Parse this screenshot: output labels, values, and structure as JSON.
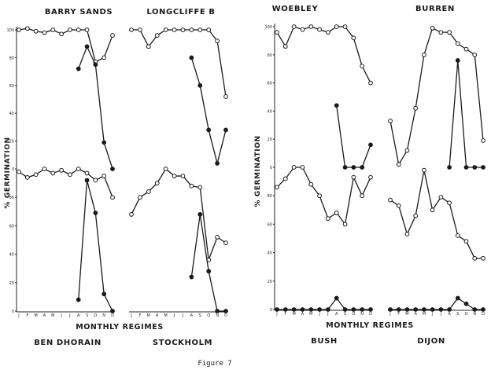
{
  "figure_label": "Figure 7",
  "groups": [
    {
      "ylabel": "% GERMINATION",
      "xlabel": "MONTHLY REGIMES"
    },
    {
      "ylabel": "% GERMINATION",
      "xlabel": "MONTHLY REGIMES"
    }
  ],
  "chart_data": [
    {
      "type": "line",
      "title": "BARRY SANDS",
      "xlabel": "MONTHLY REGIMES",
      "ylabel": "% GERMINATION",
      "x": [
        "J",
        "F",
        "M",
        "A",
        "M",
        "J",
        "J",
        "A",
        "S",
        "O",
        "N",
        "D"
      ],
      "ylim": [
        0,
        100
      ],
      "yticks": [
        0,
        20,
        40,
        60,
        80,
        100
      ],
      "series": [
        {
          "marker": "open",
          "values": [
            100,
            101,
            99,
            98,
            100,
            97,
            100,
            100,
            100,
            77,
            80,
            96
          ]
        },
        {
          "marker": "filled",
          "values": [
            null,
            null,
            null,
            null,
            null,
            null,
            null,
            72,
            88,
            75,
            19,
            0
          ]
        }
      ]
    },
    {
      "type": "line",
      "title": "LONGCLIFFE B",
      "x": [
        "J",
        "F",
        "M",
        "A",
        "M",
        "J",
        "J",
        "A",
        "S",
        "O",
        "N",
        "D"
      ],
      "ylim": [
        0,
        100
      ],
      "series": [
        {
          "marker": "open",
          "values": [
            100,
            100,
            88,
            96,
            100,
            100,
            100,
            100,
            100,
            100,
            92,
            52
          ]
        },
        {
          "marker": "filled",
          "values": [
            null,
            null,
            null,
            null,
            null,
            null,
            null,
            80,
            60,
            28,
            4,
            28
          ]
        }
      ]
    },
    {
      "type": "line",
      "title": "BEN DHORAIN",
      "xlabel": "MONTHLY REGIMES",
      "ylabel": "% GERMINATION",
      "x": [
        "J",
        "F",
        "M",
        "A",
        "M",
        "J",
        "J",
        "A",
        "S",
        "O",
        "N",
        "D"
      ],
      "ylim": [
        0,
        100
      ],
      "yticks": [
        0,
        20,
        40,
        60,
        80
      ],
      "series": [
        {
          "marker": "open",
          "values": [
            98,
            94,
            96,
            100,
            97,
            99,
            96,
            100,
            97,
            92,
            95,
            80
          ]
        },
        {
          "marker": "filled",
          "values": [
            null,
            null,
            null,
            null,
            null,
            null,
            null,
            8,
            92,
            69,
            12,
            0
          ]
        }
      ]
    },
    {
      "type": "line",
      "title": "STOCKHOLM",
      "x": [
        "J",
        "F",
        "M",
        "A",
        "M",
        "J",
        "J",
        "A",
        "S",
        "O",
        "N",
        "D"
      ],
      "ylim": [
        0,
        100
      ],
      "series": [
        {
          "marker": "open",
          "values": [
            68,
            80,
            84,
            90,
            100,
            95,
            95,
            88,
            87,
            36,
            52,
            48
          ]
        },
        {
          "marker": "filled",
          "values": [
            null,
            null,
            null,
            null,
            null,
            null,
            null,
            24,
            68,
            28,
            0,
            0
          ]
        }
      ]
    },
    {
      "type": "line",
      "title": "WOEBLEY",
      "xlabel": "MONTHLY REGIMES",
      "ylabel": "% GERMINATION",
      "x": [
        "J",
        "F",
        "M",
        "A",
        "M",
        "J",
        "J",
        "A",
        "S",
        "O",
        "N",
        "D"
      ],
      "ylim": [
        0,
        100
      ],
      "yticks": [
        0,
        20,
        40,
        60,
        80,
        100
      ],
      "series": [
        {
          "marker": "open",
          "values": [
            96,
            86,
            100,
            98,
            100,
            98,
            96,
            100,
            100,
            92,
            72,
            60
          ]
        },
        {
          "marker": "filled",
          "values": [
            null,
            null,
            null,
            null,
            null,
            null,
            null,
            44,
            0,
            0,
            0,
            16
          ]
        }
      ]
    },
    {
      "type": "line",
      "title": "BURREN",
      "x": [
        "J",
        "F",
        "M",
        "A",
        "M",
        "J",
        "J",
        "A",
        "S",
        "O",
        "N",
        "D"
      ],
      "ylim": [
        0,
        100
      ],
      "series": [
        {
          "marker": "open",
          "values": [
            33,
            2,
            12,
            42,
            80,
            99,
            96,
            96,
            88,
            84,
            80,
            19
          ]
        },
        {
          "marker": "filled",
          "values": [
            null,
            null,
            null,
            null,
            null,
            null,
            null,
            0,
            76,
            0,
            0,
            0
          ]
        }
      ]
    },
    {
      "type": "line",
      "title": "BUSH",
      "xlabel": "MONTHLY REGIMES",
      "ylabel": "% GERMINATION",
      "x": [
        "J",
        "F",
        "M",
        "A",
        "M",
        "J",
        "J",
        "A",
        "S",
        "O",
        "N",
        "D"
      ],
      "ylim": [
        0,
        100
      ],
      "yticks": [
        0,
        20,
        40,
        60,
        80
      ],
      "series": [
        {
          "marker": "open",
          "values": [
            86,
            92,
            100,
            100,
            88,
            80,
            64,
            68,
            60,
            93,
            80,
            93
          ]
        },
        {
          "marker": "filled",
          "values": [
            0,
            0,
            0,
            0,
            0,
            0,
            0,
            8,
            0,
            0,
            0,
            0
          ]
        }
      ]
    },
    {
      "type": "line",
      "title": "DIJON",
      "x": [
        "J",
        "F",
        "M",
        "A",
        "M",
        "J",
        "J",
        "A",
        "S",
        "O",
        "N",
        "D"
      ],
      "ylim": [
        0,
        100
      ],
      "series": [
        {
          "marker": "open",
          "values": [
            77,
            73,
            53,
            66,
            98,
            70,
            79,
            75,
            52,
            48,
            36,
            36
          ]
        },
        {
          "marker": "filled",
          "values": [
            0,
            0,
            0,
            0,
            0,
            0,
            0,
            0,
            8,
            4,
            0,
            0
          ]
        }
      ]
    }
  ]
}
